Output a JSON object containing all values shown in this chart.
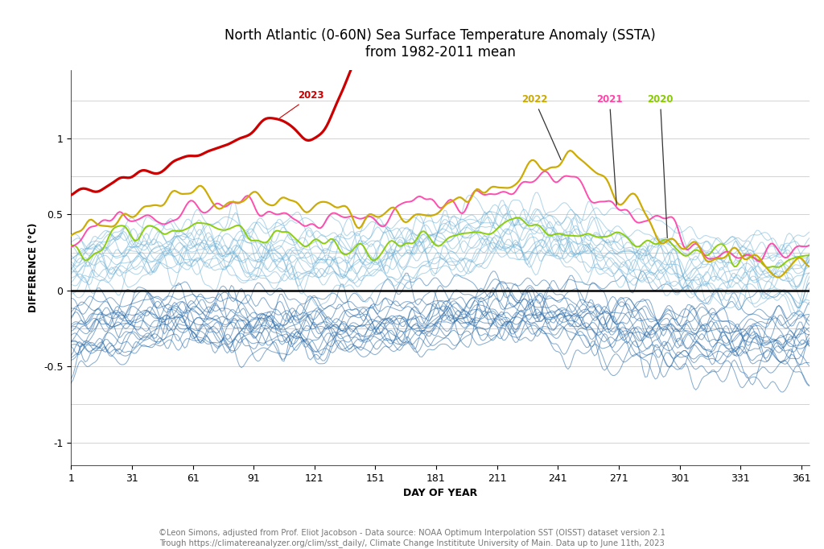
{
  "title_line1": "North Atlantic (0-60N) Sea Surface Temperature Anomaly (SSTA)",
  "title_line2": "from 1982-2011 mean",
  "xlabel": "DAY OF YEAR",
  "ylabel": "DIFFERENCE (°C)",
  "footnote_line1": "©Leon Simons, adjusted from Prof. Eliot Jacobson - Data source: NOAA Optimum Interpolation SST (OISST) dataset version 2.1",
  "footnote_line2": "Trough https://climatereanalyzer.org/clim/sst_daily/, Climate Change Instititute University of Main. Data up to June 11th, 2023",
  "xticks": [
    1,
    31,
    61,
    91,
    121,
    151,
    181,
    211,
    241,
    271,
    301,
    331,
    361
  ],
  "ylim": [
    -1.15,
    1.45
  ],
  "yticks": [
    -1.0,
    -0.5,
    0.0,
    0.5,
    1.0
  ],
  "bg_color": "#ffffff",
  "grid_color": "#cccccc",
  "zero_line_color": "#000000",
  "year_2023_color": "#cc0000",
  "year_2022_color": "#ccaa00",
  "year_2021_color": "#ff44aa",
  "year_2020_color": "#88cc00",
  "seed": 42
}
